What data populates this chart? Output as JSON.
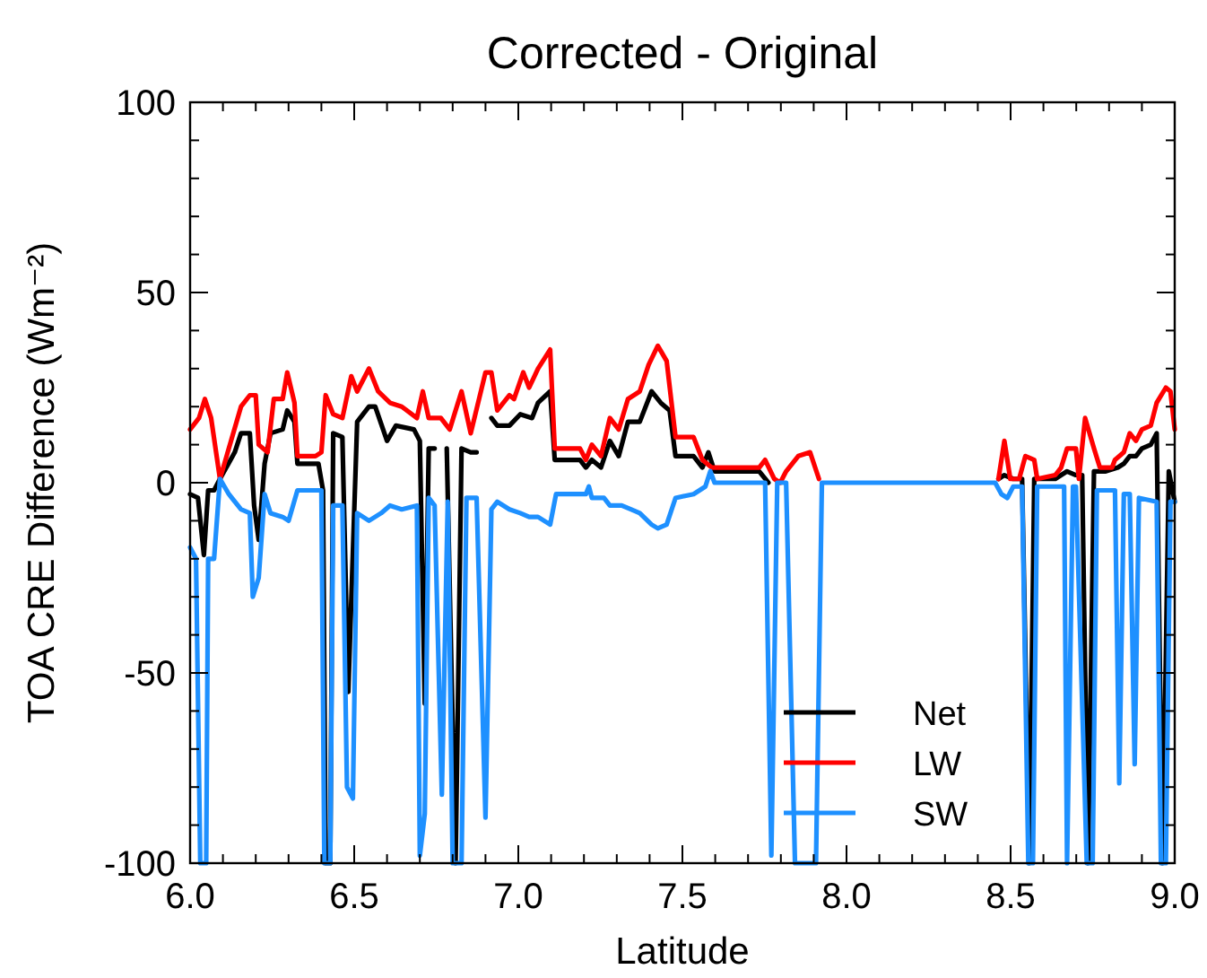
{
  "chart_data": {
    "type": "line",
    "title": "Corrected - Original",
    "xlabel": "Latitude",
    "ylabel": "TOA CRE Difference (Wm⁻²)",
    "xlim": [
      6,
      9
    ],
    "ylim": [
      -100,
      100
    ],
    "xticks": [
      {
        "value": 6,
        "label": "6.0"
      },
      {
        "value": 6.1,
        "label": null
      },
      {
        "value": 6.2,
        "label": null
      },
      {
        "value": 6.3,
        "label": null
      },
      {
        "value": 6.4,
        "label": null
      },
      {
        "value": 6.5,
        "label": "6.5"
      },
      {
        "value": 6.6,
        "label": null
      },
      {
        "value": 6.7,
        "label": null
      },
      {
        "value": 6.8,
        "label": null
      },
      {
        "value": 6.9,
        "label": null
      },
      {
        "value": 7,
        "label": "7.0"
      },
      {
        "value": 7.1,
        "label": null
      },
      {
        "value": 7.2,
        "label": null
      },
      {
        "value": 7.3,
        "label": null
      },
      {
        "value": 7.4,
        "label": null
      },
      {
        "value": 7.5,
        "label": "7.5"
      },
      {
        "value": 7.6,
        "label": null
      },
      {
        "value": 7.7,
        "label": null
      },
      {
        "value": 7.8,
        "label": null
      },
      {
        "value": 7.9,
        "label": null
      },
      {
        "value": 8,
        "label": "8.0"
      },
      {
        "value": 8.1,
        "label": null
      },
      {
        "value": 8.2,
        "label": null
      },
      {
        "value": 8.3,
        "label": null
      },
      {
        "value": 8.4,
        "label": null
      },
      {
        "value": 8.5,
        "label": "8.5"
      },
      {
        "value": 8.6,
        "label": null
      },
      {
        "value": 8.7,
        "label": null
      },
      {
        "value": 8.8,
        "label": null
      },
      {
        "value": 8.9,
        "label": null
      },
      {
        "value": 9,
        "label": "9.0"
      }
    ],
    "yticks": [
      -100,
      {
        "value": -90,
        "label": null
      },
      {
        "value": -80,
        "label": null
      },
      {
        "value": -70,
        "label": null
      },
      {
        "value": -60,
        "label": null
      },
      -50,
      {
        "value": -40,
        "label": null
      },
      {
        "value": -30,
        "label": null
      },
      {
        "value": -20,
        "label": null
      },
      {
        "value": -10,
        "label": null
      },
      0,
      {
        "value": 10,
        "label": null
      },
      {
        "value": 20,
        "label": null
      },
      {
        "value": 30,
        "label": null
      },
      {
        "value": 40,
        "label": null
      },
      50,
      {
        "value": 60,
        "label": null
      },
      {
        "value": 70,
        "label": null
      },
      {
        "value": 80,
        "label": null
      },
      {
        "value": 90,
        "label": null
      },
      100
    ],
    "grid": false,
    "legend": "bottom",
    "marker": "none",
    "line_style": "solid",
    "series": [
      {
        "name": "Net",
        "color": "#000000",
        "x": [
          6.0,
          6.024,
          6.042,
          6.055,
          6.073,
          6.091,
          6.136,
          6.155,
          6.182,
          6.195,
          6.209,
          6.227,
          6.245,
          6.282,
          6.296,
          6.318,
          6.327,
          6.391,
          6.405,
          6.413,
          6.427,
          6.436,
          6.464,
          6.482,
          6.509,
          6.545,
          6.564,
          6.6,
          6.627,
          6.682,
          6.7,
          6.715,
          6.727,
          6.745,
          6.764,
          6.782,
          6.809,
          6.827,
          6.855,
          6.873,
          6.891,
          6.918,
          6.936,
          6.973,
          7.006,
          7.042,
          7.06,
          7.097,
          7.111,
          7.188,
          7.206,
          7.224,
          7.252,
          7.279,
          7.306,
          7.334,
          7.37,
          7.406,
          7.434,
          7.461,
          7.479,
          7.534,
          7.561,
          7.579,
          7.598,
          7.734,
          7.762,
          7.9,
          8.463,
          8.481,
          8.508,
          8.535,
          8.557,
          8.572,
          8.636,
          8.654,
          8.672,
          8.699,
          8.718,
          8.736,
          8.754,
          8.79,
          8.827,
          8.845,
          8.863,
          8.882,
          8.9,
          8.927,
          8.945,
          8.963,
          8.982,
          9.0
        ],
        "values": [
          -3,
          -4,
          -19,
          -2,
          -2,
          1,
          8,
          13,
          13,
          -6,
          -15,
          5,
          13,
          14,
          19,
          16,
          5,
          5,
          -2,
          -100,
          -100,
          13,
          12,
          -55,
          16,
          20,
          20,
          11,
          15,
          14,
          11,
          -58,
          9,
          9,
          null,
          9,
          -100,
          9,
          8,
          8,
          null,
          17,
          15,
          15,
          18,
          17,
          21,
          24,
          6,
          6,
          4,
          6,
          4,
          11,
          7,
          16,
          16,
          24,
          21,
          19,
          7,
          7,
          4,
          8,
          3,
          3,
          0,
          null,
          1,
          2,
          1,
          1,
          -100,
          1,
          1,
          2,
          3,
          2,
          2,
          -100,
          3,
          3,
          4,
          5,
          7,
          7,
          9,
          10,
          13,
          -100,
          3,
          -5
        ]
      },
      {
        "name": "LW",
        "color": "#ff0000",
        "x": [
          6.0,
          6.027,
          6.045,
          6.064,
          6.091,
          6.118,
          6.155,
          6.182,
          6.2,
          6.209,
          6.236,
          6.255,
          6.282,
          6.296,
          6.318,
          6.327,
          6.382,
          6.4,
          6.413,
          6.436,
          6.464,
          6.491,
          6.509,
          6.545,
          6.573,
          6.609,
          6.645,
          6.691,
          6.709,
          6.727,
          6.764,
          6.791,
          6.827,
          6.855,
          6.9,
          6.918,
          6.936,
          6.973,
          6.987,
          7.015,
          7.033,
          7.06,
          7.097,
          7.111,
          7.188,
          7.206,
          7.224,
          7.252,
          7.279,
          7.306,
          7.334,
          7.37,
          7.397,
          7.425,
          7.452,
          7.479,
          7.534,
          7.561,
          7.589,
          7.734,
          7.752,
          7.78,
          7.798,
          7.816,
          7.853,
          7.889,
          7.916,
          8.0,
          8.463,
          8.481,
          8.499,
          8.526,
          8.545,
          8.572,
          8.581,
          8.636,
          8.654,
          8.672,
          8.699,
          8.708,
          8.727,
          8.754,
          8.772,
          8.809,
          8.818,
          8.845,
          8.863,
          8.882,
          8.9,
          8.927,
          8.945,
          8.973,
          8.987,
          9.0
        ],
        "values": [
          14,
          17,
          22,
          17,
          1,
          9,
          20,
          23,
          23,
          10,
          8,
          22,
          22,
          29,
          21,
          7,
          7,
          8,
          23,
          18,
          17,
          28,
          24,
          30,
          24,
          21,
          20,
          17,
          24,
          17,
          17,
          14,
          24,
          13,
          29,
          29,
          19,
          23,
          22,
          29,
          25,
          30,
          35,
          9,
          9,
          6,
          10,
          7,
          17,
          14,
          22,
          24,
          31,
          36,
          32,
          12,
          12,
          6,
          4,
          4,
          6,
          1,
          0,
          3,
          7,
          8,
          1,
          null,
          1,
          11,
          1,
          1,
          7,
          6,
          1,
          2,
          4,
          9,
          9,
          1,
          17,
          9,
          4,
          4,
          6,
          8,
          13,
          11,
          14,
          15,
          21,
          25,
          24,
          14
        ]
      },
      {
        "name": "SW",
        "color": "#1e90ff",
        "x": [
          6.0,
          6.018,
          6.031,
          6.049,
          6.055,
          6.073,
          6.091,
          6.118,
          6.155,
          6.182,
          6.191,
          6.209,
          6.227,
          6.245,
          6.282,
          6.3,
          6.327,
          6.4,
          6.409,
          6.427,
          6.436,
          6.464,
          6.478,
          6.496,
          6.509,
          6.545,
          6.582,
          6.609,
          6.645,
          6.691,
          6.7,
          6.715,
          6.727,
          6.745,
          6.767,
          6.785,
          6.8,
          6.827,
          6.842,
          6.873,
          6.9,
          6.918,
          6.936,
          6.973,
          7.006,
          7.033,
          7.06,
          7.097,
          7.115,
          7.206,
          7.215,
          7.224,
          7.261,
          7.279,
          7.315,
          7.343,
          7.37,
          7.406,
          7.425,
          7.452,
          7.479,
          7.534,
          7.57,
          7.585,
          7.598,
          7.752,
          7.771,
          7.789,
          7.816,
          7.843,
          7.862,
          7.907,
          7.925,
          8.453,
          8.472,
          8.49,
          8.508,
          8.535,
          8.554,
          8.568,
          8.581,
          8.663,
          8.672,
          8.69,
          8.699,
          8.732,
          8.75,
          8.763,
          8.79,
          8.818,
          8.831,
          8.845,
          8.863,
          8.878,
          8.891,
          8.945,
          8.958,
          8.973,
          8.987,
          9.0
        ],
        "values": [
          -17,
          -20,
          -100,
          -100,
          -20,
          -20,
          1,
          -3,
          -7,
          -8,
          -30,
          -25,
          -3,
          -8,
          -9,
          -10,
          -2,
          -2,
          -100,
          -100,
          -6,
          -6,
          -80,
          -83,
          -8,
          -10,
          -8,
          -6,
          -7,
          -6,
          -98,
          -87,
          -4,
          -6,
          -82,
          -5,
          -100,
          -100,
          -4,
          -4,
          -88,
          -7,
          -5,
          -7,
          -8,
          -9,
          -9,
          -11,
          -3,
          -3,
          -1,
          -4,
          -4,
          -6,
          -6,
          -7,
          -8,
          -11,
          -12,
          -11,
          -4,
          -3,
          -1,
          3,
          0,
          0,
          -98,
          0,
          0,
          -100,
          -100,
          -100,
          0,
          0,
          -3,
          -4,
          -1,
          -1,
          -100,
          -100,
          -1,
          -1,
          -100,
          -1,
          -1,
          -100,
          -100,
          -2,
          -2,
          -2,
          -79,
          -3,
          -3,
          -74,
          -4,
          -5,
          -100,
          -100,
          -5,
          -5
        ]
      }
    ]
  }
}
